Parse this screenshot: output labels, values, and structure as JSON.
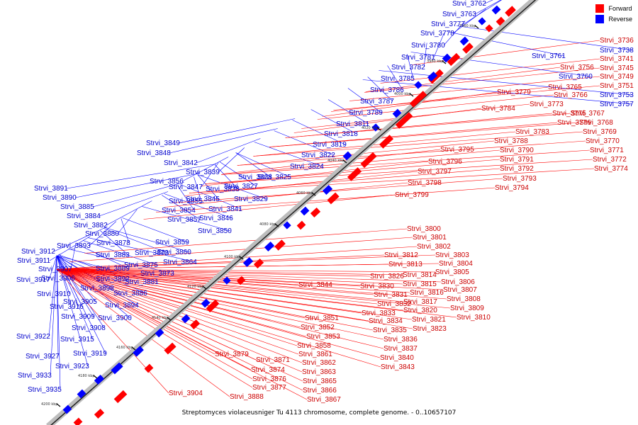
{
  "legend": {
    "forward_label": "Forward",
    "reverse_label": "Reverse",
    "forward_color": "#ff0000",
    "reverse_color": "#0000ff"
  },
  "caption": "Streptomyces violaceusniger Tu 4113 chromosome, complete genome. - 0..10657107",
  "scale_ticks": [
    "3960 kbp",
    "3980 kbp",
    "4000 kbp",
    "4020 kbp",
    "4040 kbp",
    "4060 kbp",
    "4080 kbp",
    "4100 kbp",
    "4120 kbp",
    "4140 kbp",
    "4160 kbp",
    "4180 kbp",
    "4200 kbp"
  ],
  "labels": [
    {
      "t": "Strvi_3762",
      "s": "r"
    },
    {
      "t": "Strvi_3763",
      "s": "r"
    },
    {
      "t": "Strvi_3777",
      "s": "r"
    },
    {
      "t": "Strvi_3778",
      "s": "r"
    },
    {
      "t": "Strvi_3780",
      "s": "r"
    },
    {
      "t": "Strvi_3781",
      "s": "r"
    },
    {
      "t": "Strvi_3782",
      "s": "r"
    },
    {
      "t": "Strvi_3785",
      "s": "r"
    },
    {
      "t": "Strvi_3786",
      "s": "r"
    },
    {
      "t": "Strvi_3787",
      "s": "r"
    },
    {
      "t": "Strvi_3789",
      "s": "r"
    },
    {
      "t": "Strvi_3811",
      "s": "r"
    },
    {
      "t": "Strvi_3818",
      "s": "r"
    },
    {
      "t": "Strvi_3819",
      "s": "r"
    },
    {
      "t": "Strvi_3822",
      "s": "r"
    },
    {
      "t": "Strvi_3824",
      "s": "r"
    },
    {
      "t": "Strvi_3849",
      "s": "r"
    },
    {
      "t": "Strvi_3848",
      "s": "r"
    },
    {
      "t": "Strvi_3842",
      "s": "r"
    },
    {
      "t": "Strvi_3839",
      "s": "r"
    },
    {
      "t": "Strvi_3828",
      "s": "r"
    },
    {
      "t": "Strvi_3825",
      "s": "r"
    },
    {
      "t": "Strvi_3856",
      "s": "r"
    },
    {
      "t": "Strvi_3847",
      "s": "r"
    },
    {
      "t": "Strvi_3838",
      "s": "r"
    },
    {
      "t": "Strvi_3827",
      "s": "r"
    },
    {
      "t": "Strvi_3845",
      "s": "r"
    },
    {
      "t": "Strvi_3829",
      "s": "r"
    },
    {
      "t": "Strvi_3855",
      "s": "r"
    },
    {
      "t": "Strvi_3854",
      "s": "r"
    },
    {
      "t": "Strvi_3841",
      "s": "r"
    },
    {
      "t": "Strvi_3857",
      "s": "r"
    },
    {
      "t": "Strvi_3846",
      "s": "r"
    },
    {
      "t": "Strvi_3850",
      "s": "r"
    },
    {
      "t": "Strvi_3891",
      "s": "r"
    },
    {
      "t": "Strvi_3890",
      "s": "r"
    },
    {
      "t": "Strvi_3885",
      "s": "r"
    },
    {
      "t": "Strvi_3884",
      "s": "r"
    },
    {
      "t": "Strvi_3882",
      "s": "r"
    },
    {
      "t": "Strvi_3880",
      "s": "r"
    },
    {
      "t": "Strvi_3893",
      "s": "r"
    },
    {
      "t": "Strvi_3878",
      "s": "r"
    },
    {
      "t": "Strvi_3883",
      "s": "r"
    },
    {
      "t": "Strvi_3872",
      "s": "r"
    },
    {
      "t": "Strvi_3859",
      "s": "r"
    },
    {
      "t": "Strvi_3860",
      "s": "r"
    },
    {
      "t": "Strvi_3912",
      "s": "r"
    },
    {
      "t": "Strvi_3911",
      "s": "r"
    },
    {
      "t": "Strvi_3907",
      "s": "r"
    },
    {
      "t": "Strvi_3917",
      "s": "r"
    },
    {
      "t": "Strvi_3906",
      "s": "r"
    },
    {
      "t": "Strvi_3889",
      "s": "r"
    },
    {
      "t": "Strvi_3875",
      "s": "r"
    },
    {
      "t": "Strvi_3864",
      "s": "r"
    },
    {
      "t": "Strvi_3892",
      "s": "r"
    },
    {
      "t": "Strvi_3873",
      "s": "r"
    },
    {
      "t": "Strvi_3898",
      "s": "r"
    },
    {
      "t": "Strvi_3881",
      "s": "r"
    },
    {
      "t": "Strvi_3910",
      "s": "r"
    },
    {
      "t": "Strvi_3886",
      "s": "r"
    },
    {
      "t": "Strvi_3905",
      "s": "r"
    },
    {
      "t": "Strvi_3916",
      "s": "r"
    },
    {
      "t": "Strvi_3894",
      "s": "r"
    },
    {
      "t": "Strvi_3909",
      "s": "r"
    },
    {
      "t": "Strvi_3900",
      "s": "r"
    },
    {
      "t": "Strvi_3908",
      "s": "r"
    },
    {
      "t": "Strvi_3915",
      "s": "r"
    },
    {
      "t": "Strvi_3922",
      "s": "r"
    },
    {
      "t": "Strvi_3919",
      "s": "r"
    },
    {
      "t": "Strvi_3927",
      "s": "r"
    },
    {
      "t": "Strvi_3923",
      "s": "r"
    },
    {
      "t": "Strvi_3933",
      "s": "r"
    },
    {
      "t": "Strvi_3935",
      "s": "r"
    },
    {
      "t": "Strvi_3736",
      "s": "f"
    },
    {
      "t": "Strvi_3738",
      "s": "r"
    },
    {
      "t": "Strvi_3741",
      "s": "f"
    },
    {
      "t": "Strvi_3761",
      "s": "r"
    },
    {
      "t": "Strvi_3756",
      "s": "f"
    },
    {
      "t": "Strvi_3745",
      "s": "f"
    },
    {
      "t": "Strvi_3760",
      "s": "r"
    },
    {
      "t": "Strvi_3749",
      "s": "f"
    },
    {
      "t": "Strvi_3765",
      "s": "f"
    },
    {
      "t": "Strvi_3751",
      "s": "f"
    },
    {
      "t": "Strvi_3779",
      "s": "f"
    },
    {
      "t": "Strvi_3766",
      "s": "f"
    },
    {
      "t": "Strvi_3753",
      "s": "r"
    },
    {
      "t": "Strvi_3773",
      "s": "f"
    },
    {
      "t": "Strvi_3757",
      "s": "r"
    },
    {
      "t": "Strvi_3784",
      "s": "f"
    },
    {
      "t": "Strvi_3775",
      "s": "f"
    },
    {
      "t": "Strvi_3767",
      "s": "f"
    },
    {
      "t": "Strvi_3776",
      "s": "f"
    },
    {
      "t": "Strvi_3768",
      "s": "f"
    },
    {
      "t": "Strvi_3783",
      "s": "f"
    },
    {
      "t": "Strvi_3769",
      "s": "f"
    },
    {
      "t": "Strvi_3788",
      "s": "f"
    },
    {
      "t": "Strvi_3770",
      "s": "f"
    },
    {
      "t": "Strvi_3790",
      "s": "f"
    },
    {
      "t": "Strvi_3771",
      "s": "f"
    },
    {
      "t": "Strvi_3795",
      "s": "f"
    },
    {
      "t": "Strvi_3791",
      "s": "f"
    },
    {
      "t": "Strvi_3772",
      "s": "f"
    },
    {
      "t": "Strvi_3796",
      "s": "f"
    },
    {
      "t": "Strvi_3792",
      "s": "f"
    },
    {
      "t": "Strvi_3774",
      "s": "f"
    },
    {
      "t": "Strvi_3797",
      "s": "f"
    },
    {
      "t": "Strvi_3793",
      "s": "f"
    },
    {
      "t": "Strvi_3798",
      "s": "f"
    },
    {
      "t": "Strvi_3794",
      "s": "f"
    },
    {
      "t": "Strvi_3799",
      "s": "f"
    },
    {
      "t": "Strvi_3800",
      "s": "f"
    },
    {
      "t": "Strvi_3801",
      "s": "f"
    },
    {
      "t": "Strvi_3802",
      "s": "f"
    },
    {
      "t": "Strvi_3812",
      "s": "f"
    },
    {
      "t": "Strvi_3803",
      "s": "f"
    },
    {
      "t": "Strvi_3813",
      "s": "f"
    },
    {
      "t": "Strvi_3804",
      "s": "f"
    },
    {
      "t": "Strvi_3826",
      "s": "f"
    },
    {
      "t": "Strvi_3814",
      "s": "f"
    },
    {
      "t": "Strvi_3805",
      "s": "f"
    },
    {
      "t": "Strvi_3844",
      "s": "f"
    },
    {
      "t": "Strvi_3830",
      "s": "f"
    },
    {
      "t": "Strvi_3815",
      "s": "f"
    },
    {
      "t": "Strvi_3806",
      "s": "f"
    },
    {
      "t": "Strvi_3831",
      "s": "f"
    },
    {
      "t": "Strvi_3816",
      "s": "f"
    },
    {
      "t": "Strvi_3807",
      "s": "f"
    },
    {
      "t": "Strvi_3832",
      "s": "f"
    },
    {
      "t": "Strvi_3817",
      "s": "f"
    },
    {
      "t": "Strvi_3808",
      "s": "f"
    },
    {
      "t": "Strvi_3833",
      "s": "f"
    },
    {
      "t": "Strvi_3820",
      "s": "f"
    },
    {
      "t": "Strvi_3809",
      "s": "f"
    },
    {
      "t": "Strvi_3851",
      "s": "f"
    },
    {
      "t": "Strvi_3834",
      "s": "f"
    },
    {
      "t": "Strvi_3821",
      "s": "f"
    },
    {
      "t": "Strvi_3810",
      "s": "f"
    },
    {
      "t": "Strvi_3852",
      "s": "f"
    },
    {
      "t": "Strvi_3835",
      "s": "f"
    },
    {
      "t": "Strvi_3823",
      "s": "f"
    },
    {
      "t": "Strvi_3853",
      "s": "f"
    },
    {
      "t": "Strvi_3836",
      "s": "f"
    },
    {
      "t": "Strvi_3858",
      "s": "f"
    },
    {
      "t": "Strvi_3837",
      "s": "f"
    },
    {
      "t": "Strvi_3879",
      "s": "f"
    },
    {
      "t": "Strvi_3861",
      "s": "f"
    },
    {
      "t": "Strvi_3840",
      "s": "f"
    },
    {
      "t": "Strvi_3871",
      "s": "f"
    },
    {
      "t": "Strvi_3862",
      "s": "f"
    },
    {
      "t": "Strvi_3843",
      "s": "f"
    },
    {
      "t": "Strvi_3874",
      "s": "f"
    },
    {
      "t": "Strvi_3863",
      "s": "f"
    },
    {
      "t": "Strvi_3876",
      "s": "f"
    },
    {
      "t": "Strvi_3865",
      "s": "f"
    },
    {
      "t": "Strvi_3877",
      "s": "f"
    },
    {
      "t": "Strvi_3866",
      "s": "f"
    },
    {
      "t": "Strvi_3904",
      "s": "f"
    },
    {
      "t": "Strvi_3888",
      "s": "f"
    },
    {
      "t": "Strvi_3867",
      "s": "f"
    }
  ]
}
